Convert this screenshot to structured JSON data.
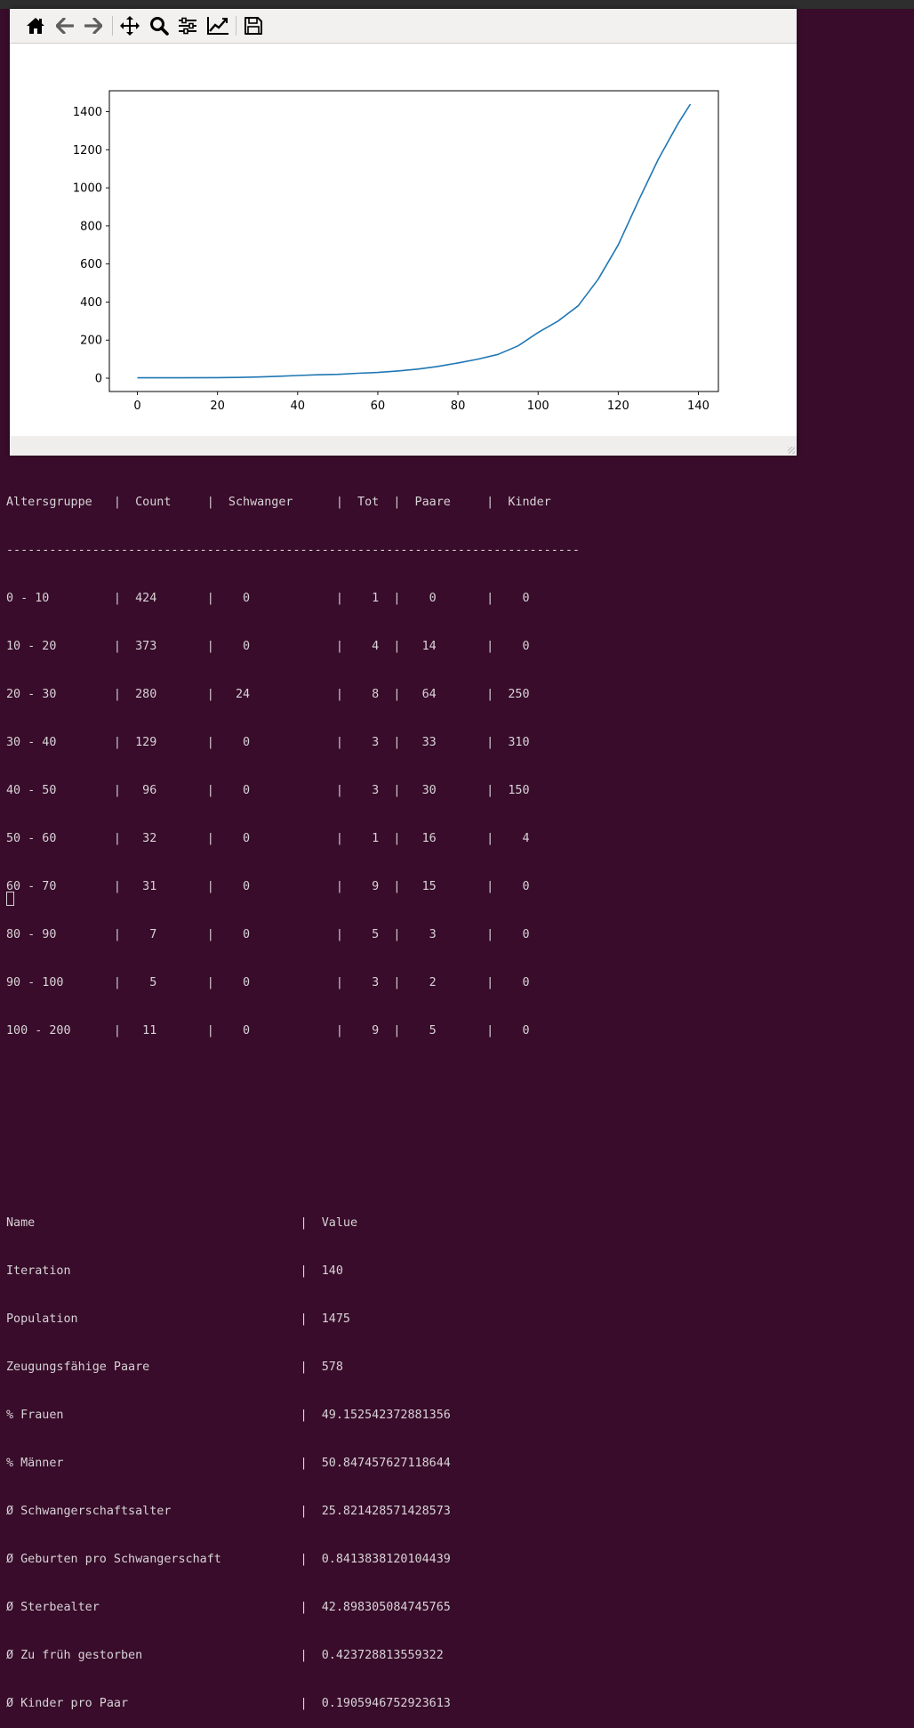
{
  "toolbar": {
    "buttons": [
      {
        "icon": "home-icon",
        "name": "home-button"
      },
      {
        "icon": "back-arrow-icon",
        "name": "back-button"
      },
      {
        "icon": "forward-arrow-icon",
        "name": "forward-button"
      },
      {
        "icon": "pan-move-icon",
        "name": "pan-button"
      },
      {
        "icon": "zoom-magnifier-icon",
        "name": "zoom-button"
      },
      {
        "icon": "configure-subplots-icon",
        "name": "subplots-button"
      },
      {
        "icon": "edit-axis-line-icon",
        "name": "edit-curve-button"
      },
      {
        "icon": "save-floppy-icon",
        "name": "save-button"
      }
    ]
  },
  "chart_data": {
    "type": "line",
    "title": "",
    "xlabel": "",
    "ylabel": "",
    "xlim": [
      -7,
      145
    ],
    "ylim": [
      -70,
      1510
    ],
    "xticks": [
      "0",
      "20",
      "40",
      "60",
      "80",
      "100",
      "120",
      "140"
    ],
    "yticks": [
      "0",
      "200",
      "400",
      "600",
      "800",
      "1000",
      "1200",
      "1400"
    ],
    "line_color": "#1f77b4",
    "series": [
      {
        "x": [
          0,
          10,
          20,
          25,
          30,
          35,
          40,
          45,
          50,
          55,
          60,
          65,
          70,
          75,
          80,
          85,
          90,
          95,
          100,
          105,
          110,
          115,
          120,
          125,
          130,
          135,
          138
        ],
        "values": [
          2,
          2,
          3,
          4,
          6,
          10,
          14,
          18,
          20,
          26,
          30,
          38,
          48,
          62,
          80,
          100,
          125,
          170,
          240,
          300,
          380,
          520,
          700,
          930,
          1150,
          1340,
          1440
        ]
      }
    ]
  },
  "terminal": {
    "age_table": {
      "header": "Altersgruppe   |  Count     |  Schwanger      |  Tot  |  Paare     |  Kinder",
      "separator": "--------------------------------------------------------------------------------",
      "rows": [
        "0 - 10         |  424       |    0            |    1  |    0       |    0",
        "10 - 20        |  373       |    0            |    4  |   14       |    0",
        "20 - 30        |  280       |   24            |    8  |   64       |  250",
        "30 - 40        |  129       |    0            |    3  |   33       |  310",
        "40 - 50        |   96       |    0            |    3  |   30       |  150",
        "50 - 60        |   32       |    0            |    1  |   16       |    4",
        "60 - 70        |   31       |    0            |    9  |   15       |    0",
        "80 - 90        |    7       |    0            |    5  |    3       |    0",
        "90 - 100       |    5       |    0            |    3  |    2       |    0",
        "100 - 200      |   11       |    0            |    9  |    5       |    0"
      ]
    },
    "stats_table": {
      "header": "Name                                     |  Value",
      "rows": [
        "Iteration                                |  140",
        "Population                               |  1475",
        "Zeugungsfähige Paare                     |  578",
        "% Frauen                                 |  49.152542372881356",
        "% Männer                                 |  50.847457627118644",
        "Ø Schwangerschaftsalter                  |  25.821428571428573",
        "Ø Geburten pro Schwangerschaft           |  0.8413838120104439",
        "Ø Sterbealter                            |  42.898305084745765",
        "Ø Zu früh gestorben                      |  0.423728813559322",
        "Ø Kinder pro Paar                        |  0.1905946752923613"
      ]
    }
  }
}
